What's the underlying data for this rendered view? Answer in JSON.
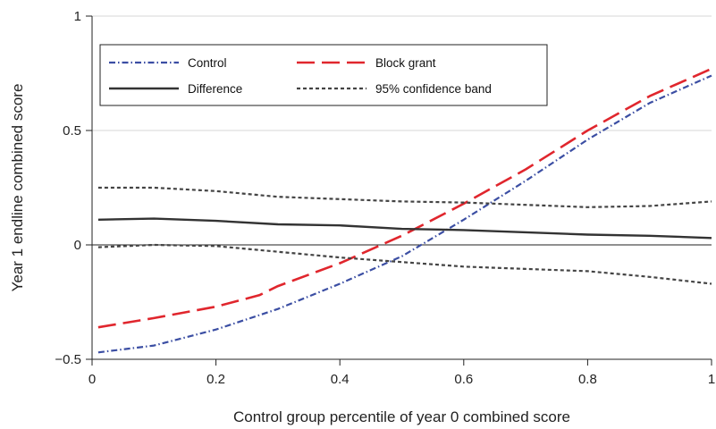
{
  "chart_data": {
    "type": "line",
    "xlabel": "Control group percentile of year 0 combined score",
    "ylabel": "Year 1 endline combined score",
    "xlim": [
      0,
      1
    ],
    "ylim": [
      -0.5,
      1
    ],
    "x_ticks": [
      0,
      0.2,
      0.4,
      0.6,
      0.8,
      1
    ],
    "x_tick_labels": [
      "0",
      "0.2",
      "0.4",
      "0.6",
      "0.8",
      "1"
    ],
    "y_ticks": [
      -0.5,
      0,
      0.5,
      1
    ],
    "y_tick_labels": [
      "−0.5",
      "0",
      "0.5",
      "1"
    ],
    "grid": "horizontal",
    "legend_position": "top",
    "zero_line": true,
    "series": [
      {
        "name": "Control",
        "color": "#3b4ea3",
        "style": "dash-dot",
        "x": [
          0.01,
          0.1,
          0.2,
          0.3,
          0.4,
          0.5,
          0.6,
          0.7,
          0.8,
          0.9,
          1.0
        ],
        "y": [
          -0.47,
          -0.44,
          -0.37,
          -0.28,
          -0.17,
          -0.05,
          0.11,
          0.28,
          0.46,
          0.62,
          0.74
        ]
      },
      {
        "name": "Block grant",
        "color": "#e0262d",
        "style": "long-dash",
        "x": [
          0.01,
          0.1,
          0.2,
          0.27,
          0.3,
          0.4,
          0.5,
          0.6,
          0.7,
          0.8,
          0.9,
          1.0
        ],
        "y": [
          -0.36,
          -0.32,
          -0.27,
          -0.22,
          -0.18,
          -0.08,
          0.04,
          0.18,
          0.33,
          0.5,
          0.65,
          0.77
        ]
      },
      {
        "name": "Difference",
        "color": "#333333",
        "style": "solid",
        "x": [
          0.01,
          0.1,
          0.2,
          0.3,
          0.4,
          0.5,
          0.6,
          0.7,
          0.8,
          0.9,
          1.0
        ],
        "y": [
          0.11,
          0.115,
          0.105,
          0.09,
          0.085,
          0.07,
          0.065,
          0.055,
          0.045,
          0.04,
          0.03
        ]
      },
      {
        "name": "95% confidence band",
        "color": "#444444",
        "style": "short-dash",
        "x": [
          0.01,
          0.1,
          0.2,
          0.3,
          0.4,
          0.5,
          0.6,
          0.7,
          0.8,
          0.9,
          1.0
        ],
        "y": [
          0.25,
          0.25,
          0.235,
          0.21,
          0.2,
          0.19,
          0.185,
          0.175,
          0.165,
          0.17,
          0.19
        ]
      },
      {
        "name": "95% confidence band",
        "color": "#444444",
        "style": "short-dash",
        "x": [
          0.01,
          0.1,
          0.2,
          0.3,
          0.4,
          0.5,
          0.6,
          0.7,
          0.8,
          0.9,
          1.0
        ],
        "y": [
          -0.01,
          0.0,
          -0.005,
          -0.03,
          -0.055,
          -0.075,
          -0.095,
          -0.105,
          -0.115,
          -0.14,
          -0.17
        ]
      }
    ],
    "legend": [
      {
        "label": "Control",
        "style": "dash-dot",
        "color": "#3b4ea3"
      },
      {
        "label": "Block grant",
        "style": "long-dash",
        "color": "#e0262d"
      },
      {
        "label": "Difference",
        "style": "solid",
        "color": "#333333"
      },
      {
        "label": "95% confidence band",
        "style": "short-dash",
        "color": "#444444"
      }
    ]
  }
}
